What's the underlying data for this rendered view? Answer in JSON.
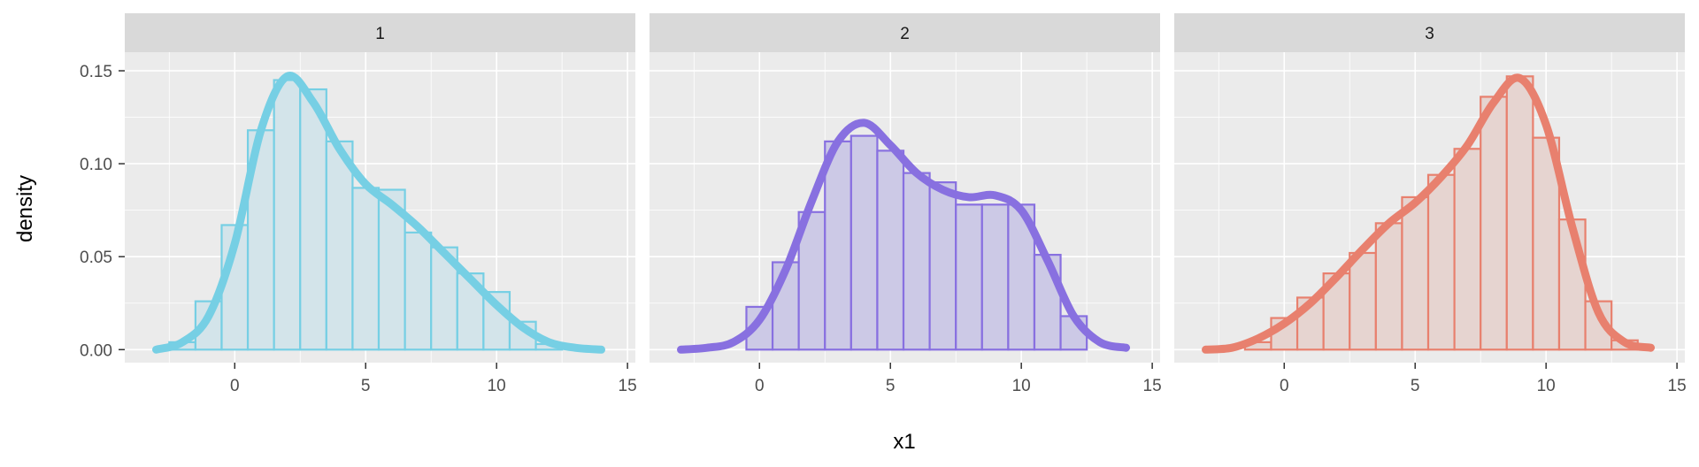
{
  "chart_data": {
    "type": "histogram",
    "xlabel": "x1",
    "ylabel": "density",
    "xlim": [
      -4.2,
      15.3
    ],
    "ylim": [
      -0.007,
      0.16
    ],
    "xticks": [
      0,
      5,
      10,
      15
    ],
    "yticks": [
      0.0,
      0.05,
      0.1,
      0.15
    ],
    "ytick_labels": [
      "0.00",
      "0.05",
      "0.10",
      "0.15"
    ],
    "bin_width": 1,
    "bins_start": -3.5,
    "panels": [
      {
        "strip": "1",
        "color": "#76CFE4",
        "fill": "#D3E4EA",
        "hist": [
          0.0,
          0.004,
          0.026,
          0.067,
          0.118,
          0.145,
          0.14,
          0.112,
          0.087,
          0.086,
          0.063,
          0.055,
          0.041,
          0.031,
          0.015,
          0.003,
          0.0
        ],
        "density_x": [
          -3,
          -2,
          -1,
          0,
          1,
          2,
          3,
          4,
          5,
          6,
          7,
          8,
          9,
          10,
          11,
          12,
          13,
          14
        ],
        "density_y": [
          0.0,
          0.004,
          0.018,
          0.057,
          0.118,
          0.147,
          0.133,
          0.108,
          0.089,
          0.078,
          0.066,
          0.052,
          0.038,
          0.024,
          0.012,
          0.004,
          0.001,
          0.0
        ]
      },
      {
        "strip": "2",
        "color": "#8870E0",
        "fill": "#CCC9E6",
        "hist": [
          0.0,
          0.0,
          0.0,
          0.023,
          0.047,
          0.074,
          0.112,
          0.115,
          0.107,
          0.095,
          0.09,
          0.078,
          0.078,
          0.078,
          0.051,
          0.018,
          0.0
        ],
        "density_x": [
          -3,
          -2,
          -1,
          0,
          1,
          2,
          3,
          4,
          5,
          6,
          7,
          8,
          9,
          10,
          11,
          12,
          13,
          14
        ],
        "density_y": [
          0.0,
          0.001,
          0.004,
          0.016,
          0.043,
          0.08,
          0.112,
          0.122,
          0.11,
          0.095,
          0.086,
          0.082,
          0.083,
          0.075,
          0.048,
          0.018,
          0.004,
          0.001
        ]
      },
      {
        "strip": "3",
        "color": "#E8806E",
        "fill": "#E6D4D0",
        "hist": [
          0.0,
          0.0,
          0.004,
          0.017,
          0.028,
          0.041,
          0.052,
          0.068,
          0.082,
          0.094,
          0.108,
          0.136,
          0.147,
          0.114,
          0.07,
          0.026,
          0.005
        ],
        "density_x": [
          -3,
          -2,
          -1,
          0,
          1,
          2,
          3,
          4,
          5,
          6,
          7,
          8,
          9,
          10,
          11,
          12,
          13,
          14
        ],
        "density_y": [
          0.0,
          0.001,
          0.006,
          0.014,
          0.025,
          0.039,
          0.054,
          0.068,
          0.079,
          0.093,
          0.11,
          0.133,
          0.146,
          0.121,
          0.066,
          0.02,
          0.004,
          0.001
        ]
      }
    ]
  }
}
